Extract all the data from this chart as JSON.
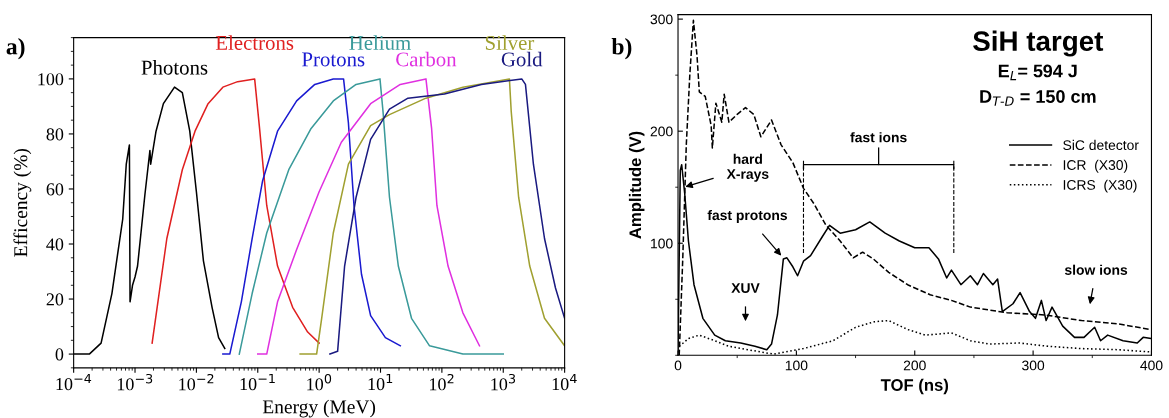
{
  "chart_data": [
    {
      "type": "line",
      "xlabel": "Energy (MeV)",
      "ylabel": "Efficency (%)",
      "log": "x",
      "xlim": [
        0.0001,
        10000
      ],
      "ylim": [
        -5,
        115
      ],
      "xticks": [
        {
          "value": 0.0001,
          "label": "10$^{−4}$"
        },
        {
          "value": 0.001,
          "label": "10$^{−3}$"
        },
        {
          "value": 0.01,
          "label": "10$^{−2}$"
        },
        {
          "value": 0.1,
          "label": "10$^{−1}$"
        },
        {
          "value": 1,
          "label": "10$^{0}$"
        },
        {
          "value": 10,
          "label": "10$^{1}$"
        },
        {
          "value": 100,
          "label": "10$^{2}$"
        },
        {
          "value": 1000,
          "label": "10$^{3}$"
        },
        {
          "value": 10000,
          "label": "10$^{4}$"
        }
      ],
      "yticks": [
        0,
        20,
        40,
        60,
        80,
        100
      ],
      "grid": false,
      "legend": false,
      "marker": "none",
      "annotations": [
        "a)"
      ],
      "series": [
        {
          "name": "Photons",
          "color": "#000000",
          "x": [
            0.0001,
            0.00018,
            0.00028,
            0.00042,
            0.00063,
            0.00072,
            0.00081,
            0.00083,
            0.00091,
            0.001,
            0.0011,
            0.00145,
            0.00175,
            0.0018,
            0.0022,
            0.0029,
            0.0044,
            0.0059,
            0.0078,
            0.01,
            0.013,
            0.018,
            0.023,
            0.029
          ],
          "values": [
            0,
            0,
            4,
            22,
            49,
            69,
            76,
            19,
            25,
            28,
            32,
            58,
            74,
            69,
            81,
            91,
            97,
            95,
            81,
            59,
            34,
            17,
            6,
            2
          ]
        },
        {
          "name": "Electrons",
          "color": "#e02020",
          "x": [
            0.0019,
            0.0033,
            0.0059,
            0.0095,
            0.0155,
            0.027,
            0.047,
            0.089,
            0.107,
            0.14,
            0.21,
            0.37,
            0.65,
            1.0
          ],
          "values": [
            4,
            42,
            67,
            81,
            91,
            97,
            99,
            100,
            82,
            54,
            32,
            17,
            8,
            4
          ]
        },
        {
          "name": "Protons",
          "color": "#1a1ad0",
          "x": [
            0.027,
            0.035,
            0.054,
            0.081,
            0.12,
            0.21,
            0.43,
            0.85,
            1.7,
            2.5,
            3.0,
            3.7,
            4.9,
            6.9,
            12,
            21
          ],
          "values": [
            0,
            0,
            19,
            42,
            63,
            81,
            92,
            98,
            100,
            100,
            84,
            54,
            29,
            14,
            6,
            3
          ]
        },
        {
          "name": "Helium",
          "color": "#3a9a9a",
          "x": [
            0.05,
            0.081,
            0.14,
            0.32,
            0.74,
            1.7,
            4.0,
            9.8,
            11,
            14,
            19.5,
            32,
            63,
            220,
            1000
          ],
          "values": [
            0,
            22,
            44,
            67,
            82,
            92,
            98,
            100,
            88,
            57,
            32,
            13,
            3,
            0,
            0
          ]
        },
        {
          "name": "Carbon",
          "color": "#e030e0",
          "x": [
            0.1,
            0.14,
            0.21,
            0.43,
            1.0,
            2.3,
            6.9,
            21,
            55,
            68,
            83,
            126,
            220,
            410
          ],
          "values": [
            0,
            0,
            19,
            38,
            59,
            77,
            91,
            98,
            100,
            82,
            54,
            32,
            15,
            3
          ]
        },
        {
          "name": "Silver",
          "color": "#a0a030",
          "x": [
            0.49,
            0.91,
            1.1,
            1.7,
            3.0,
            6.9,
            14,
            55,
            220,
            1260,
            1350,
            1780,
            2700,
            4700,
            10000
          ],
          "values": [
            0,
            0,
            13,
            44,
            69,
            83,
            87,
            93,
            97,
            100,
            88,
            57,
            32,
            13,
            3
          ]
        },
        {
          "name": "Gold",
          "color": "#1a1a80",
          "x": [
            1.5,
            2.0,
            2.6,
            4.0,
            6.9,
            14,
            28,
            110,
            440,
            2000,
            2300,
            3100,
            4700,
            7100,
            10000
          ],
          "values": [
            0,
            1,
            32,
            57,
            78,
            89,
            93,
            94.5,
            98,
            100,
            98,
            69,
            42,
            24,
            13
          ]
        }
      ]
    },
    {
      "type": "line",
      "xlabel": "TOF (ns)",
      "ylabel": "Amplitude (V)",
      "xlim": [
        0,
        400
      ],
      "ylim": [
        0,
        304
      ],
      "xticks": [
        0,
        100,
        200,
        300,
        400
      ],
      "yticks": [
        100,
        200,
        300
      ],
      "grid": false,
      "legend": "right",
      "marker": "none",
      "ref_lines": [
        {
          "axis": "x",
          "value": 106,
          "color": "#000000",
          "line_style": "dashed"
        },
        {
          "axis": "x",
          "value": 233,
          "color": "#000000",
          "line_style": "dashed"
        }
      ],
      "annotations": [
        "b)",
        "SiH target",
        "E$_{L}$= 594 J",
        "D$_{T-D}$ = 150 cm",
        "fast ions",
        {
          "text": "hard\nX-rays",
          "x": 5,
          "y": 150
        },
        {
          "text": "fast protons",
          "x": 88,
          "y": 88
        },
        "XUV",
        "slow ions"
      ],
      "series": [
        {
          "name": "SiC detector",
          "color": "#000000",
          "line_style": "solid",
          "x": [
            0,
            1.9,
            3.1,
            5.6,
            8.8,
            13.5,
            21,
            31,
            40,
            53,
            65,
            75,
            79,
            84,
            89,
            92,
            97,
            101,
            106,
            112,
            122,
            128,
            137,
            150,
            162,
            175,
            187,
            200,
            212,
            220,
            227,
            231,
            239,
            247,
            253,
            258,
            266,
            270,
            274,
            283,
            289,
            297,
            302,
            307,
            311,
            316,
            325,
            335,
            343,
            352,
            357,
            363,
            376,
            388,
            393,
            399
          ],
          "values": [
            3,
            165,
            170,
            145,
            102,
            63,
            33,
            18,
            13,
            11,
            8,
            5,
            10,
            36,
            86,
            87,
            79,
            71,
            84,
            89,
            106,
            116,
            109,
            112,
            119,
            109,
            102,
            96,
            96,
            86,
            69,
            76,
            63,
            71,
            63,
            73,
            63,
            68,
            39,
            46,
            56,
            39,
            33,
            49,
            31,
            43,
            26,
            16,
            16,
            25,
            13,
            18,
            13,
            11,
            16,
            15
          ]
        },
        {
          "name": "ICR  (X30)",
          "color": "#000000",
          "line_style": "dashed",
          "x": [
            1,
            4,
            7,
            10,
            13,
            16,
            18,
            23,
            28,
            29,
            32,
            37,
            39,
            43,
            50,
            57,
            64,
            70,
            79,
            87,
            97,
            106,
            115,
            125,
            137,
            148,
            156,
            165,
            178,
            194,
            213,
            231,
            247,
            278,
            310,
            341,
            372,
            399
          ],
          "values": [
            0,
            86,
            188,
            251,
            299,
            268,
            235,
            231,
            205,
            185,
            225,
            208,
            233,
            208,
            215,
            221,
            215,
            195,
            210,
            188,
            172,
            149,
            135,
            116,
            102,
            87,
            92,
            86,
            74,
            63,
            54,
            49,
            43,
            38,
            36,
            31,
            28,
            23
          ]
        },
        {
          "name": "ICRS  (X30)",
          "color": "#000000",
          "line_style": "dotted",
          "x": [
            1,
            9,
            18,
            31,
            43,
            59,
            81,
            106,
            131,
            150,
            166,
            178,
            194,
            209,
            231,
            247,
            263,
            288,
            313,
            341,
            372,
            399
          ],
          "values": [
            8,
            15,
            18,
            13,
            8,
            5,
            1,
            6,
            13,
            25,
            30,
            31,
            23,
            18,
            20,
            13,
            10,
            11,
            8,
            6,
            5,
            3
          ]
        }
      ]
    }
  ]
}
